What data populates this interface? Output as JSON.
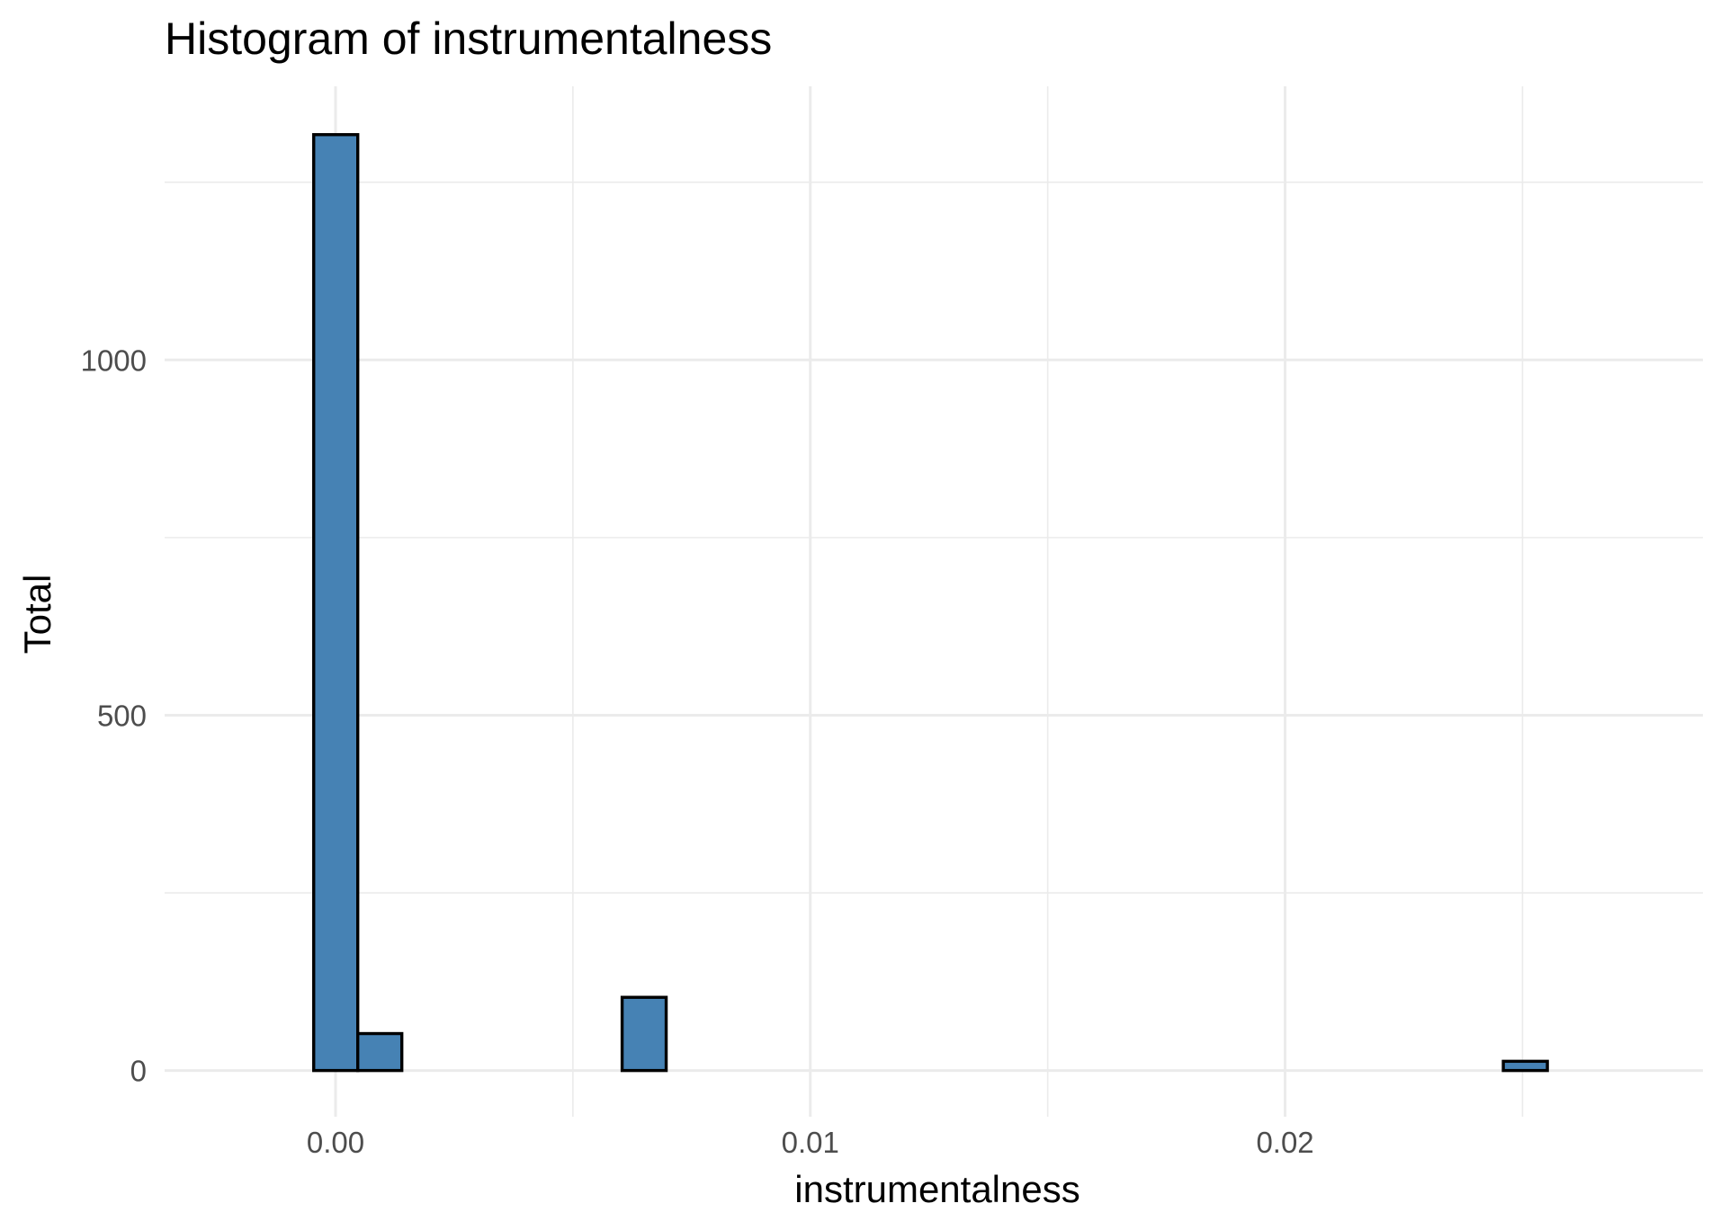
{
  "chart_data": {
    "type": "bar",
    "title": "Histogram of  instrumentalness",
    "xlabel": "instrumentalness",
    "ylabel": "Total",
    "xlim": [
      -0.0036,
      0.0288
    ],
    "ylim": [
      -65,
      1385
    ],
    "x_ticks": [
      {
        "value": 0.0,
        "label": "0.00"
      },
      {
        "value": 0.01,
        "label": "0.01"
      },
      {
        "value": 0.02,
        "label": "0.02"
      }
    ],
    "x_minor_ticks": [
      0.005,
      0.015,
      0.025
    ],
    "y_ticks": [
      {
        "value": 0,
        "label": "0"
      },
      {
        "value": 500,
        "label": "500"
      },
      {
        "value": 1000,
        "label": "1000"
      }
    ],
    "y_minor_ticks": [
      250,
      750,
      1250
    ],
    "bins": {
      "start": -0.00046,
      "width": 0.000928,
      "counts": [
        1317,
        52,
        0,
        0,
        0,
        0,
        0,
        103,
        0,
        0,
        0,
        0,
        0,
        0,
        0,
        0,
        0,
        0,
        0,
        0,
        0,
        0,
        0,
        0,
        0,
        0,
        0,
        13
      ]
    },
    "bar_fill": "#4682b4",
    "bar_outline": "#000000",
    "grid": true,
    "legend": "none"
  }
}
